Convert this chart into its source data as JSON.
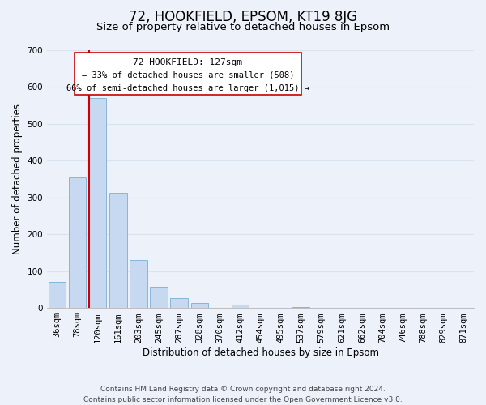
{
  "title": "72, HOOKFIELD, EPSOM, KT19 8JG",
  "subtitle": "Size of property relative to detached houses in Epsom",
  "xlabel": "Distribution of detached houses by size in Epsom",
  "ylabel": "Number of detached properties",
  "bar_labels": [
    "36sqm",
    "78sqm",
    "120sqm",
    "161sqm",
    "203sqm",
    "245sqm",
    "287sqm",
    "328sqm",
    "370sqm",
    "412sqm",
    "454sqm",
    "495sqm",
    "537sqm",
    "579sqm",
    "621sqm",
    "662sqm",
    "704sqm",
    "746sqm",
    "788sqm",
    "829sqm",
    "871sqm"
  ],
  "bar_values": [
    70,
    355,
    570,
    313,
    130,
    58,
    27,
    14,
    0,
    10,
    0,
    0,
    3,
    0,
    0,
    0,
    0,
    0,
    0,
    0,
    0
  ],
  "bar_color": "#c6d9f0",
  "bar_edge_color": "#7bafd4",
  "vline_color": "#cc0000",
  "ylim": [
    0,
    700
  ],
  "yticks": [
    0,
    100,
    200,
    300,
    400,
    500,
    600,
    700
  ],
  "annotation_title": "72 HOOKFIELD: 127sqm",
  "annotation_line1": "← 33% of detached houses are smaller (508)",
  "annotation_line2": "66% of semi-detached houses are larger (1,015) →",
  "annotation_box_facecolor": "#ffffff",
  "annotation_box_edgecolor": "#cc0000",
  "footer_line1": "Contains HM Land Registry data © Crown copyright and database right 2024.",
  "footer_line2": "Contains public sector information licensed under the Open Government Licence v3.0.",
  "background_color": "#edf1f9",
  "grid_color": "#d8e4f0",
  "title_fontsize": 12,
  "subtitle_fontsize": 9.5,
  "axis_label_fontsize": 8.5,
  "tick_fontsize": 7.5,
  "footer_fontsize": 6.5
}
